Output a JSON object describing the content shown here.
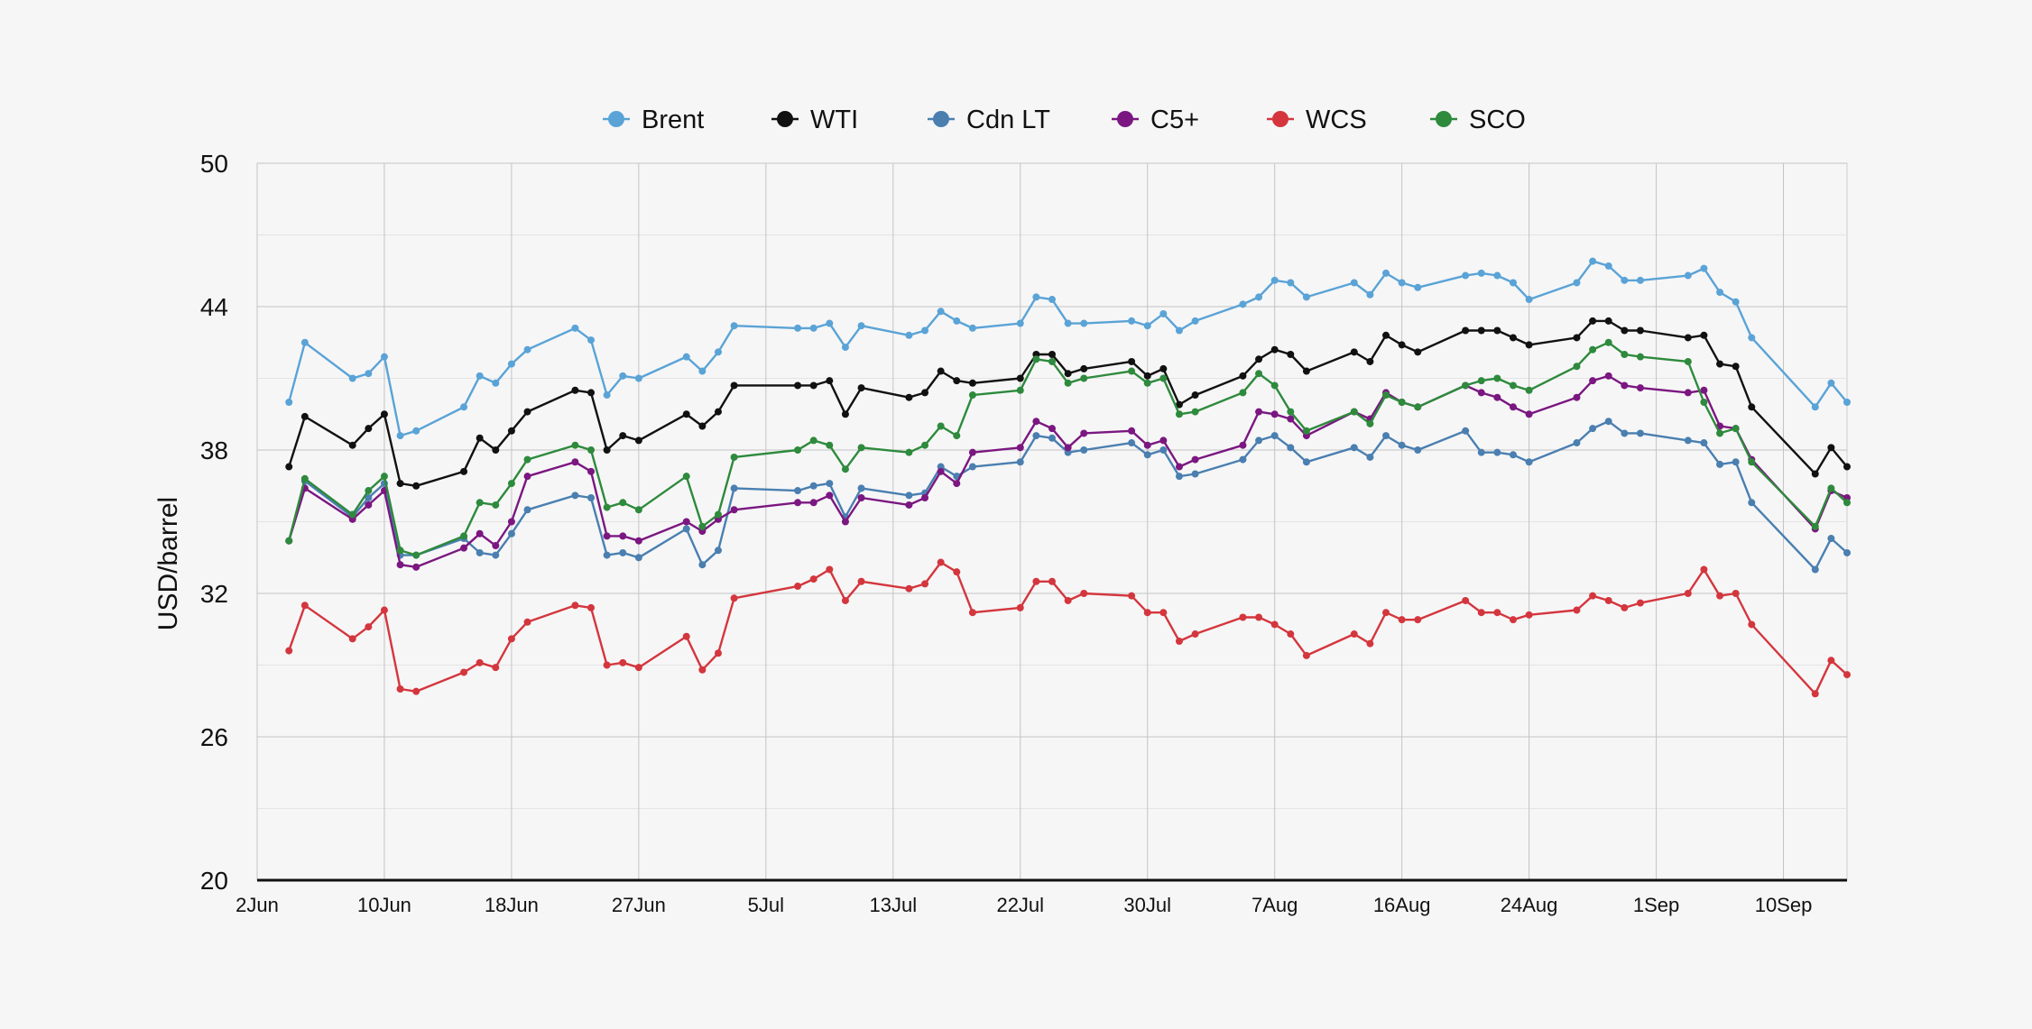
{
  "chart_data": {
    "type": "line",
    "title": "",
    "xlabel": "",
    "ylabel": "USD/barrel",
    "ylim": [
      20,
      50
    ],
    "yticks": [
      20,
      26,
      32,
      38,
      44,
      50
    ],
    "xlim": [
      "2020-06-02",
      "2020-09-10"
    ],
    "xticks": [
      {
        "date": "2020-06-02",
        "label": "2Jun"
      },
      {
        "date": "2020-06-10",
        "label": "10Jun"
      },
      {
        "date": "2020-06-18",
        "label": "18Jun"
      },
      {
        "date": "2020-06-26",
        "label": "27Jun"
      },
      {
        "date": "2020-07-04",
        "label": "5Jul"
      },
      {
        "date": "2020-07-12",
        "label": "13Jul"
      },
      {
        "date": "2020-07-20",
        "label": "22Jul"
      },
      {
        "date": "2020-07-28",
        "label": "30Jul"
      },
      {
        "date": "2020-08-05",
        "label": "7Aug"
      },
      {
        "date": "2020-08-13",
        "label": "16Aug"
      },
      {
        "date": "2020-08-21",
        "label": "24Aug"
      },
      {
        "date": "2020-08-29",
        "label": "1Sep"
      },
      {
        "date": "2020-09-06",
        "label": "10Sep"
      }
    ],
    "grid": true,
    "legend_position": "top-center",
    "x": [
      "2020-06-04",
      "2020-06-05",
      "2020-06-08",
      "2020-06-09",
      "2020-06-10",
      "2020-06-11",
      "2020-06-12",
      "2020-06-15",
      "2020-06-16",
      "2020-06-17",
      "2020-06-18",
      "2020-06-19",
      "2020-06-22",
      "2020-06-23",
      "2020-06-24",
      "2020-06-25",
      "2020-06-26",
      "2020-06-29",
      "2020-06-30",
      "2020-07-01",
      "2020-07-02",
      "2020-07-06",
      "2020-07-07",
      "2020-07-08",
      "2020-07-09",
      "2020-07-10",
      "2020-07-13",
      "2020-07-14",
      "2020-07-15",
      "2020-07-16",
      "2020-07-17",
      "2020-07-20",
      "2020-07-21",
      "2020-07-22",
      "2020-07-23",
      "2020-07-24",
      "2020-07-27",
      "2020-07-28",
      "2020-07-29",
      "2020-07-30",
      "2020-07-31",
      "2020-08-03",
      "2020-08-04",
      "2020-08-05",
      "2020-08-06",
      "2020-08-07",
      "2020-08-10",
      "2020-08-11",
      "2020-08-12",
      "2020-08-13",
      "2020-08-14",
      "2020-08-17",
      "2020-08-18",
      "2020-08-19",
      "2020-08-20",
      "2020-08-21",
      "2020-08-24",
      "2020-08-25",
      "2020-08-26",
      "2020-08-27",
      "2020-08-28",
      "2020-08-31",
      "2020-09-01",
      "2020-09-02",
      "2020-09-03",
      "2020-09-04",
      "2020-09-08",
      "2020-09-09",
      "2020-09-10"
    ],
    "series": [
      {
        "name": "Brent",
        "color": "#5aa3d6",
        "values": [
          40.0,
          42.5,
          41.0,
          41.2,
          41.9,
          38.6,
          38.8,
          39.8,
          41.1,
          40.8,
          41.6,
          42.2,
          43.1,
          42.6,
          40.3,
          41.1,
          41.0,
          41.9,
          41.3,
          42.1,
          43.2,
          43.1,
          43.1,
          43.3,
          42.3,
          43.2,
          42.8,
          43.0,
          43.8,
          43.4,
          43.1,
          43.3,
          44.4,
          44.3,
          43.3,
          43.3,
          43.4,
          43.2,
          43.7,
          43.0,
          43.4,
          44.1,
          44.4,
          45.1,
          45.0,
          44.4,
          45.0,
          44.5,
          45.4,
          45.0,
          44.8,
          45.3,
          45.4,
          45.3,
          45.0,
          44.3,
          45.0,
          45.9,
          45.7,
          45.1,
          45.1,
          45.3,
          45.6,
          44.6,
          44.2,
          42.7,
          39.8,
          40.8,
          40.0
        ]
      },
      {
        "name": "WTI",
        "color": "#111111",
        "values": [
          37.3,
          39.4,
          38.2,
          38.9,
          39.5,
          36.6,
          36.5,
          37.1,
          38.5,
          38.0,
          38.8,
          39.6,
          40.5,
          40.4,
          38.0,
          38.6,
          38.4,
          39.5,
          39.0,
          39.6,
          40.7,
          40.7,
          40.7,
          40.9,
          39.5,
          40.6,
          40.2,
          40.4,
          41.3,
          40.9,
          40.8,
          41.0,
          42.0,
          42.0,
          41.2,
          41.4,
          41.7,
          41.1,
          41.4,
          39.9,
          40.3,
          41.1,
          41.8,
          42.2,
          42.0,
          41.3,
          42.1,
          41.7,
          42.8,
          42.4,
          42.1,
          43.0,
          43.0,
          43.0,
          42.7,
          42.4,
          42.7,
          43.4,
          43.4,
          43.0,
          43.0,
          42.7,
          42.8,
          41.6,
          41.5,
          39.8,
          37.0,
          38.1,
          37.3
        ]
      },
      {
        "name": "Cdn LT",
        "color": "#4a7fb0",
        "values": [
          34.2,
          36.7,
          35.2,
          36.0,
          36.6,
          33.6,
          33.6,
          34.3,
          33.7,
          33.6,
          34.5,
          35.5,
          36.1,
          36.0,
          33.6,
          33.7,
          33.5,
          34.7,
          33.2,
          33.8,
          36.4,
          36.3,
          36.5,
          36.6,
          35.2,
          36.4,
          36.1,
          36.2,
          37.3,
          36.9,
          37.3,
          37.5,
          38.6,
          38.5,
          37.9,
          38.0,
          38.3,
          37.8,
          38.0,
          36.9,
          37.0,
          37.6,
          38.4,
          38.6,
          38.1,
          37.5,
          38.1,
          37.7,
          38.6,
          38.2,
          38.0,
          38.8,
          37.9,
          37.9,
          37.8,
          37.5,
          38.3,
          38.9,
          39.2,
          38.7,
          38.7,
          38.4,
          38.3,
          37.4,
          37.5,
          35.8,
          33.0,
          34.3,
          33.7
        ]
      },
      {
        "name": "C5+",
        "color": "#7b1780",
        "values": [
          34.2,
          36.4,
          35.1,
          35.7,
          36.3,
          33.2,
          33.1,
          33.9,
          34.5,
          34.0,
          35.0,
          36.9,
          37.5,
          37.1,
          34.4,
          34.4,
          34.2,
          35.0,
          34.6,
          35.1,
          35.5,
          35.8,
          35.8,
          36.1,
          35.0,
          36.0,
          35.7,
          36.0,
          37.1,
          36.6,
          37.9,
          38.1,
          39.2,
          38.9,
          38.1,
          38.7,
          38.8,
          38.2,
          38.4,
          37.3,
          37.6,
          38.2,
          39.6,
          39.5,
          39.3,
          38.6,
          39.6,
          39.3,
          40.4,
          40.0,
          39.8,
          40.7,
          40.4,
          40.2,
          39.8,
          39.5,
          40.2,
          40.9,
          41.1,
          40.7,
          40.6,
          40.4,
          40.5,
          39.0,
          38.9,
          37.6,
          34.7,
          36.3,
          36.0
        ]
      },
      {
        "name": "WCS",
        "color": "#d4363d",
        "values": [
          29.6,
          31.5,
          30.1,
          30.6,
          31.3,
          28.0,
          27.9,
          28.7,
          29.1,
          28.9,
          30.1,
          30.8,
          31.5,
          31.4,
          29.0,
          29.1,
          28.9,
          30.2,
          28.8,
          29.5,
          31.8,
          32.3,
          32.6,
          33.0,
          31.7,
          32.5,
          32.2,
          32.4,
          33.3,
          32.9,
          31.2,
          31.4,
          32.5,
          32.5,
          31.7,
          32.0,
          31.9,
          31.2,
          31.2,
          30.0,
          30.3,
          31.0,
          31.0,
          30.7,
          30.3,
          29.4,
          30.3,
          29.9,
          31.2,
          30.9,
          30.9,
          31.7,
          31.2,
          31.2,
          30.9,
          31.1,
          31.3,
          31.9,
          31.7,
          31.4,
          31.6,
          32.0,
          33.0,
          31.9,
          32.0,
          30.7,
          27.8,
          29.2,
          28.6
        ]
      },
      {
        "name": "SCO",
        "color": "#2e8a3c",
        "values": [
          34.2,
          36.8,
          35.3,
          36.3,
          36.9,
          33.8,
          33.6,
          34.4,
          35.8,
          35.7,
          36.6,
          37.6,
          38.2,
          38.0,
          35.6,
          35.8,
          35.5,
          36.9,
          34.8,
          35.3,
          37.7,
          38.0,
          38.4,
          38.2,
          37.2,
          38.1,
          37.9,
          38.2,
          39.0,
          38.6,
          40.3,
          40.5,
          41.8,
          41.7,
          40.8,
          41.0,
          41.3,
          40.8,
          41.0,
          39.5,
          39.6,
          40.4,
          41.2,
          40.7,
          39.6,
          38.8,
          39.6,
          39.1,
          40.3,
          40.0,
          39.8,
          40.7,
          40.9,
          41.0,
          40.7,
          40.5,
          41.5,
          42.2,
          42.5,
          42.0,
          41.9,
          41.7,
          40.0,
          38.7,
          38.9,
          37.5,
          34.8,
          36.4,
          35.8
        ]
      }
    ]
  }
}
